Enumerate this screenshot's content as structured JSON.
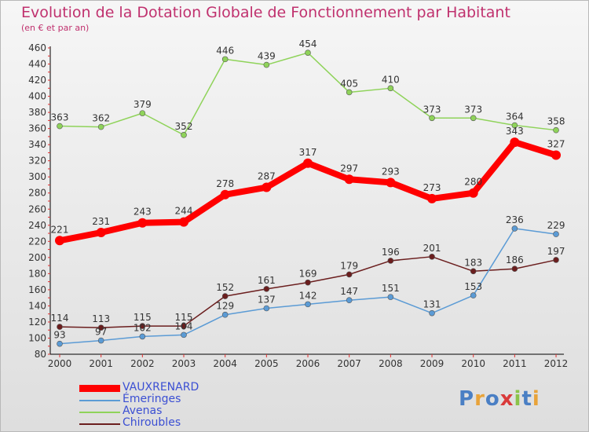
{
  "title": "Evolution de la Dotation Globale de Fonctionnement par Habitant",
  "subtitle": "(en € et par an)",
  "brand": "Proxiti",
  "chart_data": {
    "type": "line",
    "title": "Evolution de la Dotation Globale de Fonctionnement par Habitant",
    "ylabel": "(en € et par an)",
    "xlabel": "",
    "ylim": [
      80,
      460
    ],
    "ytick_step": 20,
    "grid": false,
    "legend_position": "bottom-left",
    "categories": [
      "2000",
      "2001",
      "2002",
      "2003",
      "2004",
      "2005",
      "2006",
      "2007",
      "2008",
      "2009",
      "2010",
      "2011",
      "2012"
    ],
    "series": [
      {
        "name": "VAUXRENARD",
        "color": "#ff0000",
        "values": [
          221,
          231,
          243,
          244,
          278,
          287,
          317,
          297,
          293,
          273,
          280,
          343,
          327
        ]
      },
      {
        "name": "Émeringes",
        "color": "#5b9bd5",
        "values": [
          93,
          97,
          102,
          104,
          129,
          137,
          142,
          147,
          151,
          131,
          153,
          236,
          229
        ]
      },
      {
        "name": "Avenas",
        "color": "#8fd35a",
        "values": [
          363,
          362,
          379,
          352,
          446,
          439,
          454,
          405,
          410,
          373,
          373,
          364,
          358
        ]
      },
      {
        "name": "Chiroubles",
        "color": "#6b1e1e",
        "values": [
          114,
          113,
          115,
          115,
          152,
          161,
          169,
          179,
          196,
          201,
          183,
          186,
          197
        ]
      }
    ]
  }
}
